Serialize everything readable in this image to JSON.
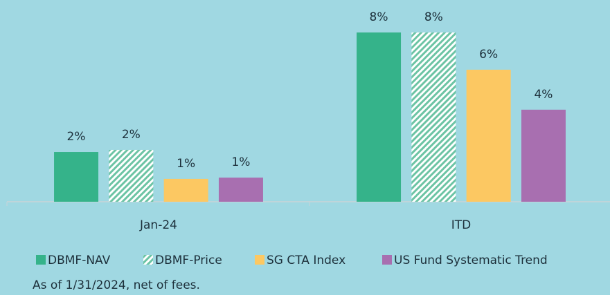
{
  "chart_data": {
    "type": "bar",
    "categories": [
      "Jan-24",
      "ITD"
    ],
    "series": [
      {
        "name": "DBMF-NAV",
        "color": "#35b38a",
        "values": [
          2.35,
          8.0
        ],
        "value_labels": [
          "2%",
          "8%"
        ]
      },
      {
        "name": "DBMF-Price",
        "color": "#35b38a",
        "hatch": true,
        "values": [
          2.45,
          8.0
        ],
        "value_labels": [
          "2%",
          "8%"
        ]
      },
      {
        "name": "SG CTA Index",
        "color": "#fcc862",
        "values": [
          1.08,
          6.24
        ],
        "value_labels": [
          "1%",
          "6%"
        ]
      },
      {
        "name": "US Fund Systematic Trend",
        "color": "#a86fb0",
        "values": [
          1.14,
          4.35
        ],
        "value_labels": [
          "1%",
          "4%"
        ]
      }
    ],
    "legend": "bottom",
    "footnote": "As of 1/31/2024, net of fees."
  }
}
